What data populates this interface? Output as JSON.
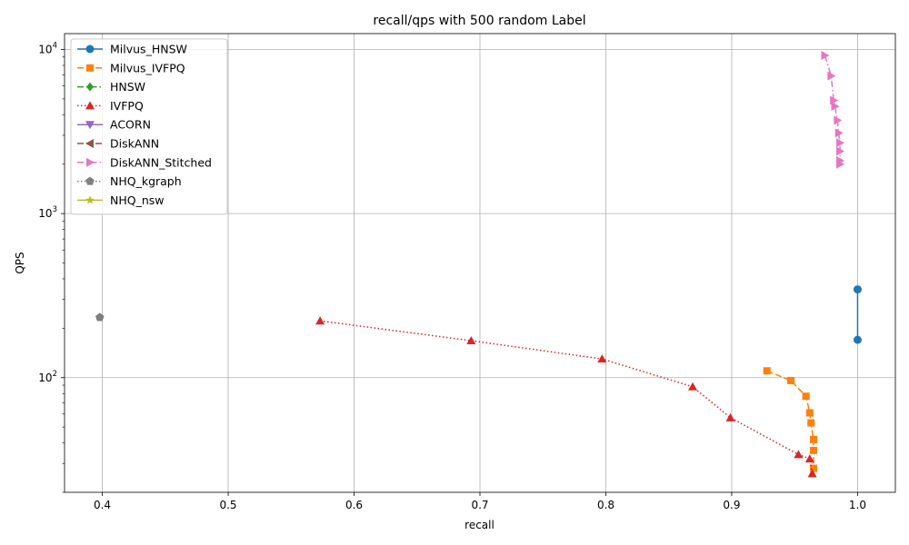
{
  "chart_data": {
    "type": "line",
    "title": "recall/qps with 500 random Label",
    "xlabel": "recall",
    "ylabel": "QPS",
    "xlim": [
      0.37,
      1.03
    ],
    "ylim": [
      20,
      12500
    ],
    "yscale": "log",
    "grid": true,
    "legend_position": "top-left",
    "xticks": [
      0.4,
      0.5,
      0.6,
      0.7,
      0.8,
      0.9,
      1.0
    ],
    "xtick_labels": [
      "0.4",
      "0.5",
      "0.6",
      "0.7",
      "0.8",
      "0.9",
      "1.0"
    ],
    "yticks": [
      {
        "value": 100,
        "base": "10",
        "exp": "2"
      },
      {
        "value": 1000,
        "base": "10",
        "exp": "3"
      },
      {
        "value": 10000,
        "base": "10",
        "exp": "4"
      }
    ],
    "series": [
      {
        "name": "Milvus_HNSW",
        "color": "#1f77b4",
        "marker": "circle",
        "dash": "solid",
        "points": [
          [
            1.0,
            345
          ],
          [
            1.0,
            170
          ]
        ]
      },
      {
        "name": "Milvus_IVFPQ",
        "color": "#ff7f0e",
        "marker": "square",
        "dash": "dashed",
        "points": [
          [
            0.928,
            110
          ],
          [
            0.947,
            96
          ],
          [
            0.959,
            77
          ],
          [
            0.962,
            61
          ],
          [
            0.963,
            53
          ],
          [
            0.965,
            42
          ],
          [
            0.965,
            36
          ],
          [
            0.965,
            28
          ]
        ]
      },
      {
        "name": "HNSW",
        "color": "#2ca02c",
        "marker": "diamond",
        "dash": "dashdot",
        "points": []
      },
      {
        "name": "IVFPQ",
        "color": "#d62728",
        "marker": "triangle-up",
        "dash": "dotted",
        "points": [
          [
            0.573,
            222
          ],
          [
            0.693,
            168
          ],
          [
            0.797,
            130
          ],
          [
            0.869,
            88
          ],
          [
            0.899,
            57
          ],
          [
            0.953,
            34
          ],
          [
            0.962,
            32
          ],
          [
            0.964,
            26
          ]
        ]
      },
      {
        "name": "ACORN",
        "color": "#9467bd",
        "marker": "triangle-down",
        "dash": "solid",
        "points": []
      },
      {
        "name": "DiskANN",
        "color": "#8c564b",
        "marker": "triangle-left",
        "dash": "dashed",
        "points": []
      },
      {
        "name": "DiskANN_Stitched",
        "color": "#e377c2",
        "marker": "triangle-right",
        "dash": "dashdot",
        "points": [
          [
            0.974,
            9200
          ],
          [
            0.979,
            6900
          ],
          [
            0.981,
            4900
          ],
          [
            0.982,
            4500
          ],
          [
            0.984,
            3700
          ],
          [
            0.985,
            3100
          ],
          [
            0.986,
            2700
          ],
          [
            0.986,
            2400
          ],
          [
            0.986,
            2100
          ],
          [
            0.986,
            2000
          ]
        ]
      },
      {
        "name": "NHQ_kgraph",
        "color": "#7f7f7f",
        "marker": "pentagon",
        "dash": "dotted",
        "points": [
          [
            0.398,
            233
          ]
        ]
      },
      {
        "name": "NHQ_nsw",
        "color": "#bcbd22",
        "marker": "star",
        "dash": "solid",
        "points": []
      }
    ]
  }
}
